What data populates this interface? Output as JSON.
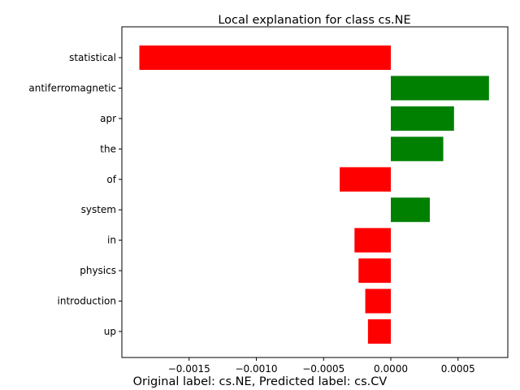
{
  "chart_data": {
    "type": "bar",
    "orientation": "horizontal",
    "title": "Local explanation for class cs.NE",
    "caption": "Original label: cs.NE, Predicted label: cs.CV",
    "xlabel": "",
    "ylabel": "",
    "categories": [
      "statistical",
      "antiferromagnetic",
      "apr",
      "the",
      "of",
      "system",
      "in",
      "physics",
      "introduction",
      "up"
    ],
    "values": [
      -0.00187,
      0.00073,
      0.00047,
      0.00039,
      -0.00038,
      0.00029,
      -0.00027,
      -0.00024,
      -0.00019,
      -0.00017
    ],
    "xlim": [
      -0.002,
      0.00087
    ],
    "xticks": [
      -0.0015,
      -0.001,
      -0.0005,
      0.0,
      0.0005
    ],
    "xtick_labels": [
      "−0.0015",
      "−0.0010",
      "−0.0005",
      "0.0000",
      "0.0005"
    ],
    "positive_color": "#008000",
    "negative_color": "#ff0000",
    "grid": false,
    "legend": "none"
  }
}
